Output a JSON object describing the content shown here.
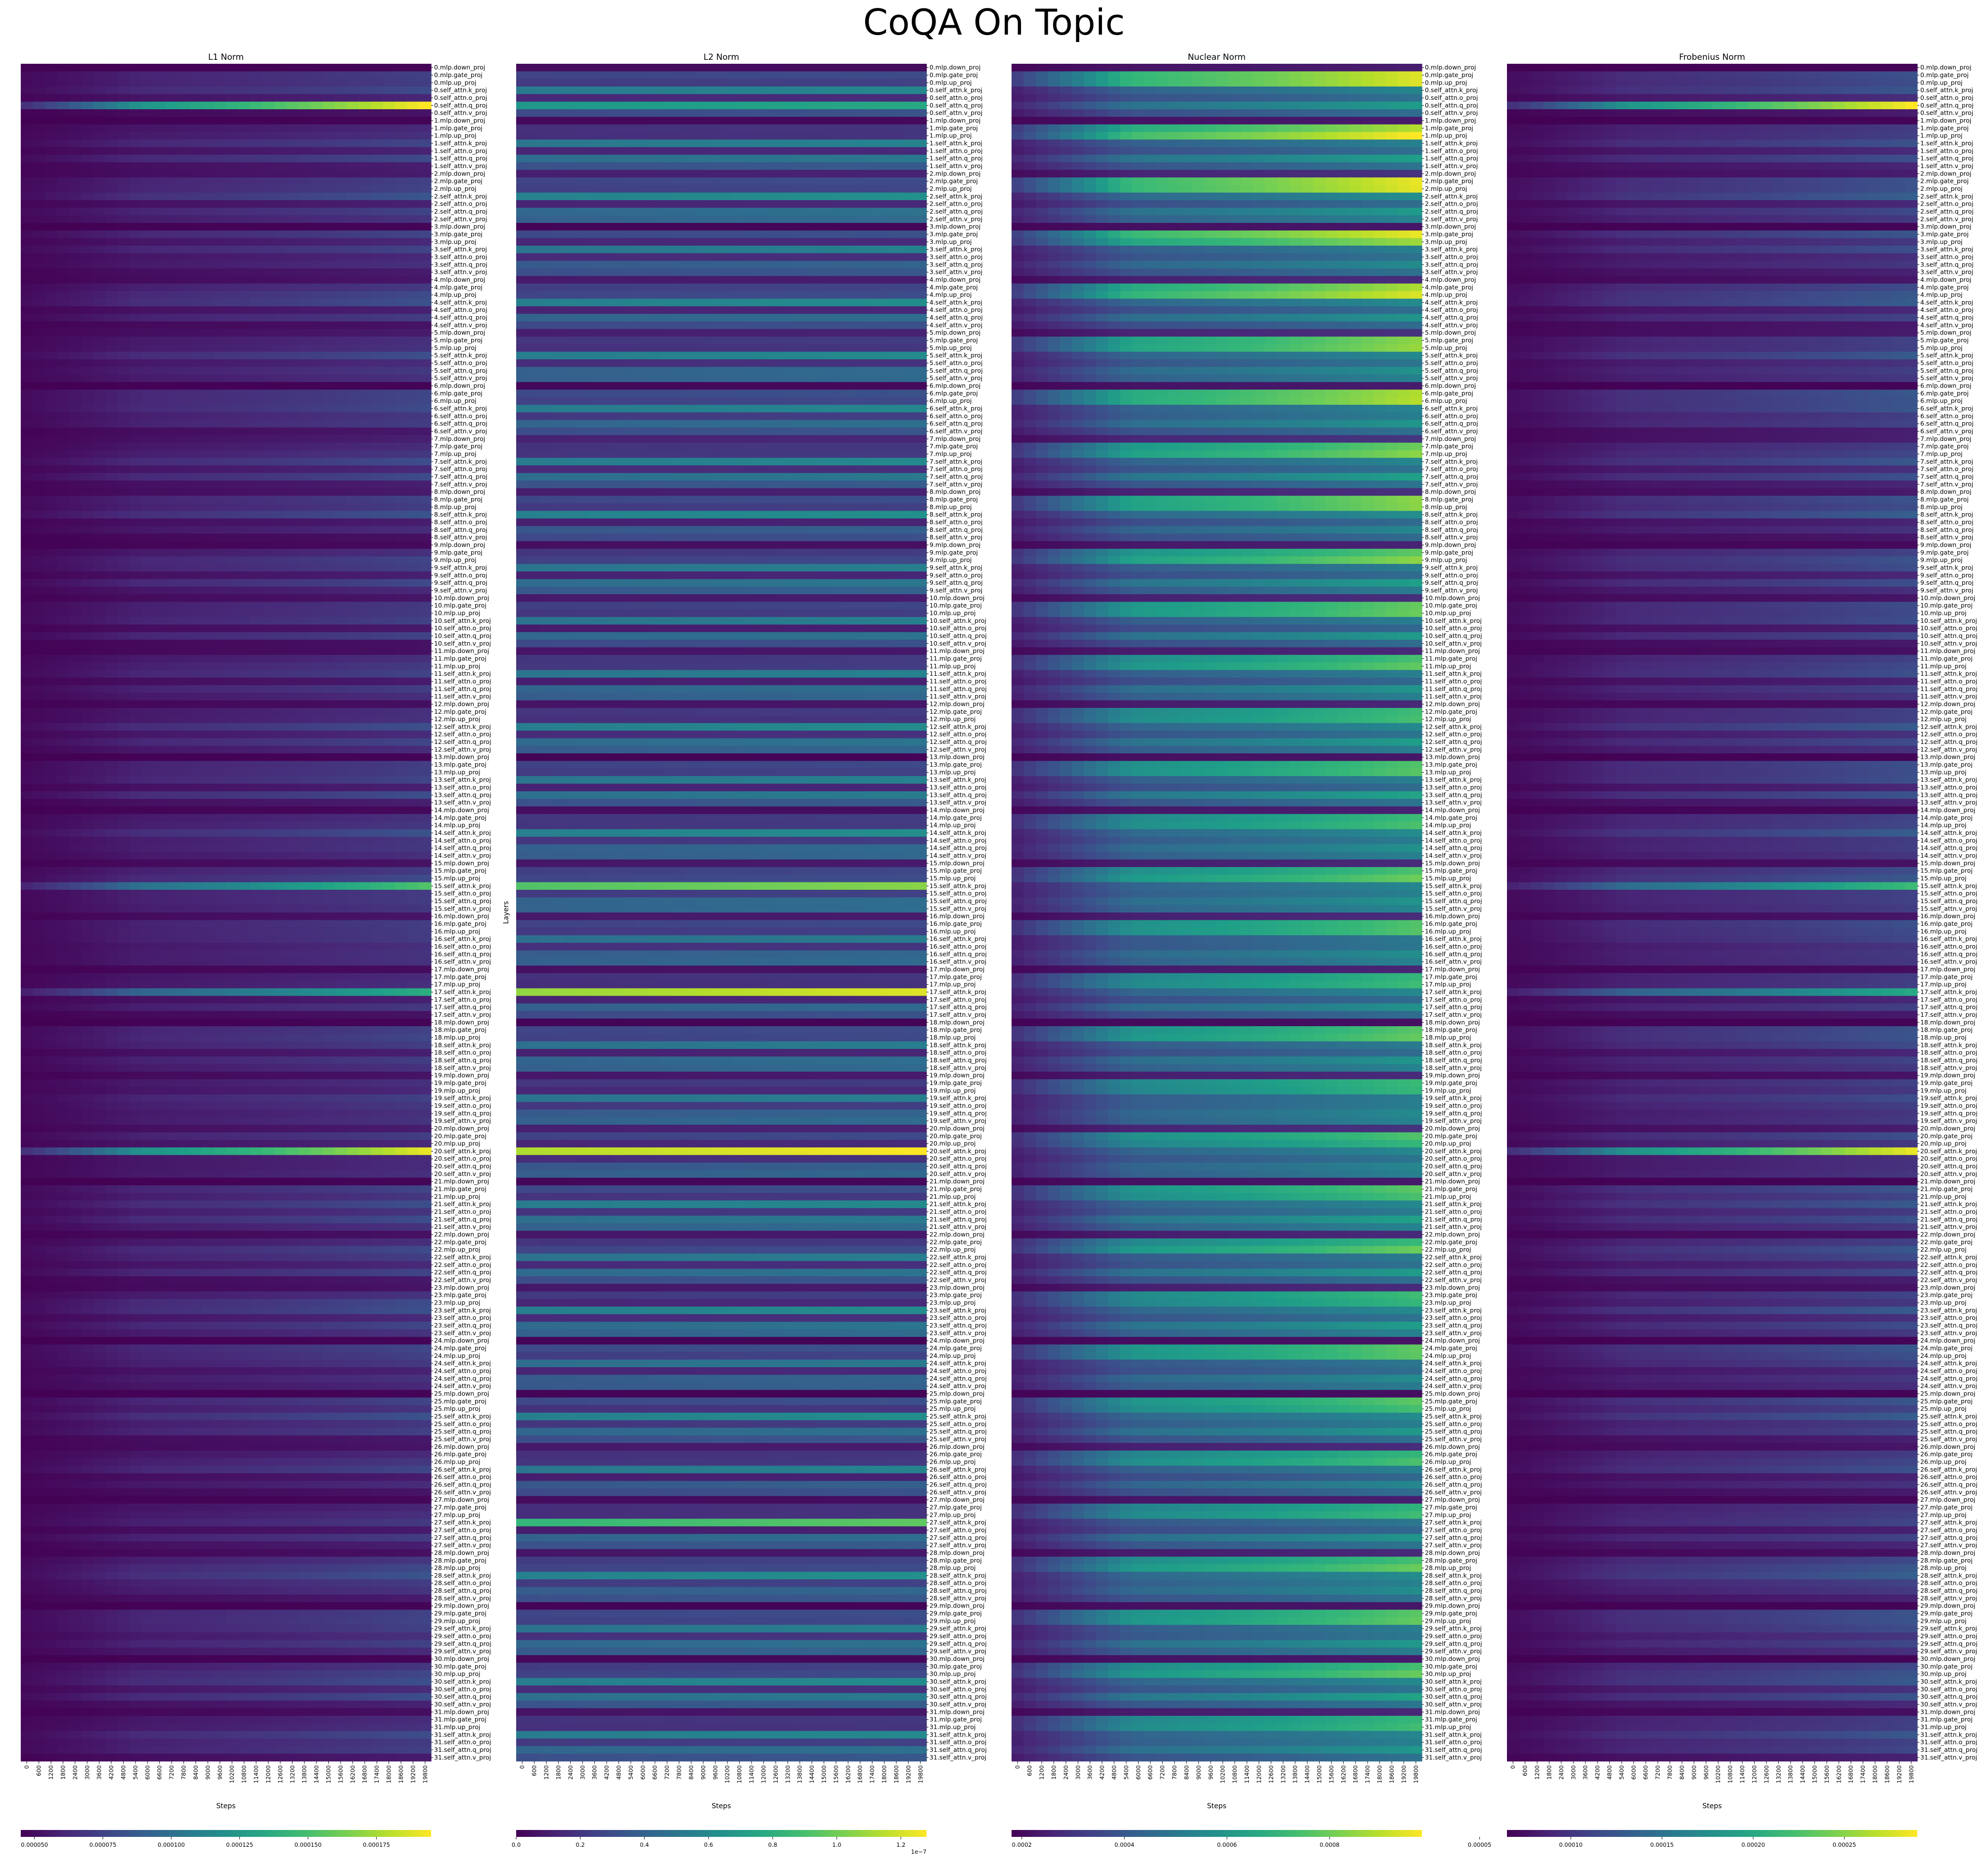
{
  "title": "CoQA On Topic",
  "chart_data": {
    "type": "heatmap",
    "colormap": "viridis",
    "layers": [
      "0.mlp.down_proj",
      "0.mlp.gate_proj",
      "0.mlp.up_proj",
      "0.self_attn.k_proj",
      "0.self_attn.o_proj",
      "0.self_attn.q_proj",
      "0.self_attn.v_proj",
      "1.mlp.down_proj",
      "1.mlp.gate_proj",
      "1.mlp.up_proj",
      "1.self_attn.k_proj",
      "1.self_attn.o_proj",
      "1.self_attn.q_proj",
      "1.self_attn.v_proj",
      "2.mlp.down_proj",
      "2.mlp.gate_proj",
      "2.mlp.up_proj",
      "2.self_attn.k_proj",
      "2.self_attn.o_proj",
      "2.self_attn.q_proj",
      "2.self_attn.v_proj",
      "3.mlp.down_proj",
      "3.mlp.gate_proj",
      "3.mlp.up_proj",
      "3.self_attn.k_proj",
      "3.self_attn.o_proj",
      "3.self_attn.q_proj",
      "3.self_attn.v_proj",
      "4.mlp.down_proj",
      "4.mlp.gate_proj",
      "4.mlp.up_proj",
      "4.self_attn.k_proj",
      "4.self_attn.o_proj",
      "4.self_attn.q_proj",
      "4.self_attn.v_proj",
      "5.mlp.down_proj",
      "5.mlp.gate_proj",
      "5.mlp.up_proj",
      "5.self_attn.k_proj",
      "5.self_attn.o_proj",
      "5.self_attn.q_proj",
      "5.self_attn.v_proj",
      "6.mlp.down_proj",
      "6.mlp.gate_proj",
      "6.mlp.up_proj",
      "6.self_attn.k_proj",
      "6.self_attn.o_proj",
      "6.self_attn.q_proj",
      "6.self_attn.v_proj",
      "7.mlp.down_proj",
      "7.mlp.gate_proj",
      "7.mlp.up_proj",
      "7.self_attn.k_proj",
      "7.self_attn.o_proj",
      "7.self_attn.q_proj",
      "7.self_attn.v_proj",
      "8.mlp.down_proj",
      "8.mlp.gate_proj",
      "8.mlp.up_proj",
      "8.self_attn.k_proj",
      "8.self_attn.o_proj",
      "8.self_attn.q_proj",
      "8.self_attn.v_proj",
      "9.mlp.down_proj",
      "9.mlp.gate_proj",
      "9.mlp.up_proj",
      "9.self_attn.k_proj",
      "9.self_attn.o_proj",
      "9.self_attn.q_proj",
      "9.self_attn.v_proj",
      "10.mlp.down_proj",
      "10.mlp.gate_proj",
      "10.mlp.up_proj",
      "10.self_attn.k_proj",
      "10.self_attn.o_proj",
      "10.self_attn.q_proj",
      "10.self_attn.v_proj",
      "11.mlp.down_proj",
      "11.mlp.gate_proj",
      "11.mlp.up_proj",
      "11.self_attn.k_proj",
      "11.self_attn.o_proj",
      "11.self_attn.q_proj",
      "11.self_attn.v_proj",
      "12.mlp.down_proj",
      "12.mlp.gate_proj",
      "12.mlp.up_proj",
      "12.self_attn.k_proj",
      "12.self_attn.o_proj",
      "12.self_attn.q_proj",
      "12.self_attn.v_proj",
      "13.mlp.down_proj",
      "13.mlp.gate_proj",
      "13.mlp.up_proj",
      "13.self_attn.k_proj",
      "13.self_attn.o_proj",
      "13.self_attn.q_proj",
      "13.self_attn.v_proj",
      "14.mlp.down_proj",
      "14.mlp.gate_proj",
      "14.mlp.up_proj",
      "14.self_attn.k_proj",
      "14.self_attn.o_proj",
      "14.self_attn.q_proj",
      "14.self_attn.v_proj",
      "15.mlp.down_proj",
      "15.mlp.gate_proj",
      "15.mlp.up_proj",
      "15.self_attn.k_proj",
      "15.self_attn.o_proj",
      "15.self_attn.q_proj",
      "15.self_attn.v_proj",
      "16.mlp.down_proj",
      "16.mlp.gate_proj",
      "16.mlp.up_proj",
      "16.self_attn.k_proj",
      "16.self_attn.o_proj",
      "16.self_attn.q_proj",
      "16.self_attn.v_proj",
      "17.mlp.down_proj",
      "17.mlp.gate_proj",
      "17.mlp.up_proj",
      "17.self_attn.k_proj",
      "17.self_attn.o_proj",
      "17.self_attn.q_proj",
      "17.self_attn.v_proj",
      "18.mlp.down_proj",
      "18.mlp.gate_proj",
      "18.mlp.up_proj",
      "18.self_attn.k_proj",
      "18.self_attn.o_proj",
      "18.self_attn.q_proj",
      "18.self_attn.v_proj",
      "19.mlp.down_proj",
      "19.mlp.gate_proj",
      "19.mlp.up_proj",
      "19.self_attn.k_proj",
      "19.self_attn.o_proj",
      "19.self_attn.q_proj",
      "19.self_attn.v_proj",
      "20.mlp.down_proj",
      "20.mlp.gate_proj",
      "20.mlp.up_proj",
      "20.self_attn.k_proj",
      "20.self_attn.o_proj",
      "20.self_attn.q_proj",
      "20.self_attn.v_proj",
      "21.mlp.down_proj",
      "21.mlp.gate_proj",
      "21.mlp.up_proj",
      "21.self_attn.k_proj",
      "21.self_attn.o_proj",
      "21.self_attn.q_proj",
      "21.self_attn.v_proj",
      "22.mlp.down_proj",
      "22.mlp.gate_proj",
      "22.mlp.up_proj",
      "22.self_attn.k_proj",
      "22.self_attn.o_proj",
      "22.self_attn.q_proj",
      "22.self_attn.v_proj",
      "23.mlp.down_proj",
      "23.mlp.gate_proj",
      "23.mlp.up_proj",
      "23.self_attn.k_proj",
      "23.self_attn.o_proj",
      "23.self_attn.q_proj",
      "23.self_attn.v_proj",
      "24.mlp.down_proj",
      "24.mlp.gate_proj",
      "24.mlp.up_proj",
      "24.self_attn.k_proj",
      "24.self_attn.o_proj",
      "24.self_attn.q_proj",
      "24.self_attn.v_proj",
      "25.mlp.down_proj",
      "25.mlp.gate_proj",
      "25.mlp.up_proj",
      "25.self_attn.k_proj",
      "25.self_attn.o_proj",
      "25.self_attn.q_proj",
      "25.self_attn.v_proj",
      "26.mlp.down_proj",
      "26.mlp.gate_proj",
      "26.mlp.up_proj",
      "26.self_attn.k_proj",
      "26.self_attn.o_proj",
      "26.self_attn.q_proj",
      "26.self_attn.v_proj",
      "27.mlp.down_proj",
      "27.mlp.gate_proj",
      "27.mlp.up_proj",
      "27.self_attn.k_proj",
      "27.self_attn.o_proj",
      "27.self_attn.q_proj",
      "27.self_attn.v_proj",
      "28.mlp.down_proj",
      "28.mlp.gate_proj",
      "28.mlp.up_proj",
      "28.self_attn.k_proj",
      "28.self_attn.o_proj",
      "28.self_attn.q_proj",
      "28.self_attn.v_proj",
      "29.mlp.down_proj",
      "29.mlp.gate_proj",
      "29.mlp.up_proj",
      "29.self_attn.k_proj",
      "29.self_attn.o_proj",
      "29.self_attn.q_proj",
      "29.self_attn.v_proj",
      "30.mlp.down_proj",
      "30.mlp.gate_proj",
      "30.mlp.up_proj",
      "30.self_attn.k_proj",
      "30.self_attn.o_proj",
      "30.self_attn.q_proj",
      "30.self_attn.v_proj",
      "31.mlp.down_proj",
      "31.mlp.gate_proj",
      "31.mlp.up_proj",
      "31.self_attn.k_proj",
      "31.self_attn.o_proj",
      "31.self_attn.q_proj",
      "31.self_attn.v_proj"
    ],
    "x_ticks": [
      "0",
      "600",
      "1200",
      "1800",
      "2400",
      "3000",
      "3600",
      "4200",
      "4800",
      "5400",
      "6000",
      "6600",
      "7200",
      "7800",
      "8400",
      "9000",
      "9600",
      "10200",
      "10800",
      "11400",
      "12000",
      "12600",
      "13200",
      "13800",
      "14400",
      "15000",
      "15600",
      "16200",
      "16800",
      "17400",
      "18000",
      "18600",
      "19200",
      "19800"
    ],
    "xlabel": "Steps",
    "ylabel": "Layers",
    "panels": [
      {
        "title": "L1 Norm",
        "colorbar_ticks": [
          "0.000050",
          "0.000075",
          "0.000100",
          "0.000125",
          "0.000150",
          "0.000175"
        ],
        "colorbar_range": [
          4.5e-05,
          0.000195
        ],
        "colorbar_offset": "",
        "highlights": [
          {
            "layer": "0.self_attn.q_proj",
            "end_level": 1.0
          },
          {
            "layer": "20.self_attn.k_proj",
            "end_level": 0.97
          },
          {
            "layer": "15.self_attn.k_proj",
            "end_level": 0.72
          },
          {
            "layer": "17.self_attn.k_proj",
            "end_level": 0.62
          }
        ]
      },
      {
        "title": "L2 Norm",
        "colorbar_ticks": [
          "0.0",
          "0.2",
          "0.4",
          "0.6",
          "0.8",
          "1.0",
          "1.2"
        ],
        "colorbar_range": [
          0.0,
          1.28
        ],
        "colorbar_offset": "1e−7",
        "highlights": [
          {
            "layer": "20.self_attn.k_proj",
            "end_level": 1.0
          },
          {
            "layer": "17.self_attn.k_proj",
            "end_level": 0.95
          },
          {
            "layer": "15.self_attn.k_proj",
            "end_level": 0.82
          },
          {
            "layer": "27.self_attn.k_proj",
            "end_level": 0.75
          },
          {
            "layer": "0.self_attn.q_proj",
            "end_level": 0.6
          }
        ]
      },
      {
        "title": "Nuclear Norm",
        "colorbar_ticks": [
          "0.0002",
          "0.0004",
          "0.0006",
          "0.0008"
        ],
        "colorbar_range": [
          0.00018,
          0.00098
        ],
        "colorbar_offset": "",
        "highlights": [
          {
            "layer": "0.mlp.gate_proj",
            "end_level": 0.95
          },
          {
            "layer": "0.mlp.up_proj",
            "end_level": 0.95
          },
          {
            "layer": "1.mlp.up_proj",
            "end_level": 1.0
          },
          {
            "layer": "2.mlp.gate_proj",
            "end_level": 0.97
          },
          {
            "layer": "3.mlp.gate_proj",
            "end_level": 0.97
          }
        ]
      },
      {
        "title": "Frobenius Norm",
        "colorbar_ticks": [
          "0.00005",
          "0.00010",
          "0.00015",
          "0.00020",
          "0.00025"
        ],
        "colorbar_range": [
          6.5e-05,
          0.00029
        ],
        "colorbar_offset": "",
        "highlights": [
          {
            "layer": "0.self_attn.q_proj",
            "end_level": 1.0
          },
          {
            "layer": "20.self_attn.k_proj",
            "end_level": 0.97
          },
          {
            "layer": "15.self_attn.k_proj",
            "end_level": 0.68
          },
          {
            "layer": "17.self_attn.k_proj",
            "end_level": 0.6
          }
        ]
      }
    ]
  }
}
